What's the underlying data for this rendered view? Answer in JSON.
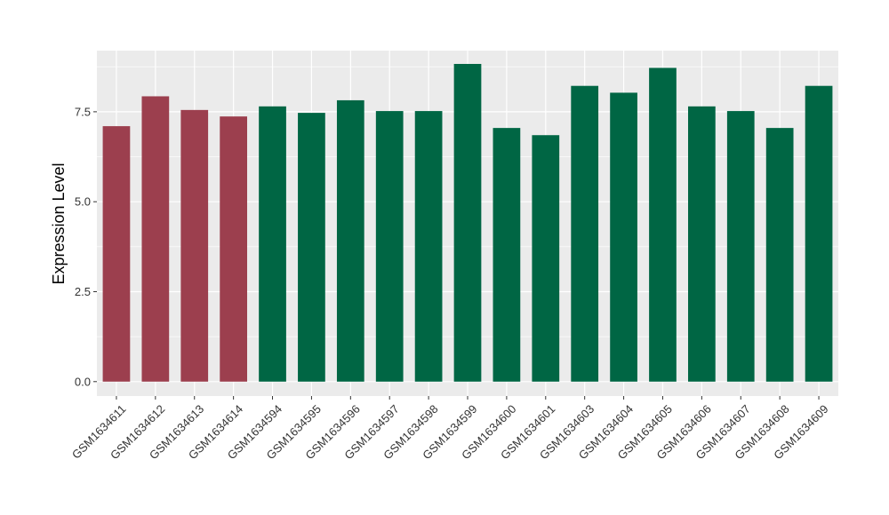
{
  "chart_data": {
    "type": "bar",
    "title": "",
    "xlabel": "",
    "ylabel": "Expression Level",
    "ylim": [
      -0.4,
      9.2
    ],
    "yticks": [
      0.0,
      2.5,
      5.0,
      7.5
    ],
    "ytick_labels": [
      "0.0",
      "2.5",
      "5.0",
      "7.5"
    ],
    "grid": true,
    "legend": "none",
    "categories": [
      "GSM1634611",
      "GSM1634612",
      "GSM1634613",
      "GSM1634614",
      "GSM1634594",
      "GSM1634595",
      "GSM1634596",
      "GSM1634597",
      "GSM1634598",
      "GSM1634599",
      "GSM1634600",
      "GSM1634601",
      "GSM1634603",
      "GSM1634604",
      "GSM1634605",
      "GSM1634606",
      "GSM1634607",
      "GSM1634608",
      "GSM1634609"
    ],
    "values": [
      7.1,
      7.93,
      7.55,
      7.37,
      7.65,
      7.47,
      7.82,
      7.52,
      7.52,
      8.83,
      7.05,
      6.85,
      8.22,
      8.03,
      8.72,
      7.65,
      7.52,
      7.05,
      8.22
    ],
    "bar_colors": [
      "#9c3f4e",
      "#9c3f4e",
      "#9c3f4e",
      "#9c3f4e",
      "#006644",
      "#006644",
      "#006644",
      "#006644",
      "#006644",
      "#006644",
      "#006644",
      "#006644",
      "#006644",
      "#006644",
      "#006644",
      "#006644",
      "#006644",
      "#006644",
      "#006644"
    ],
    "panel_background": "#ebebeb",
    "grid_color": "#ffffff"
  }
}
